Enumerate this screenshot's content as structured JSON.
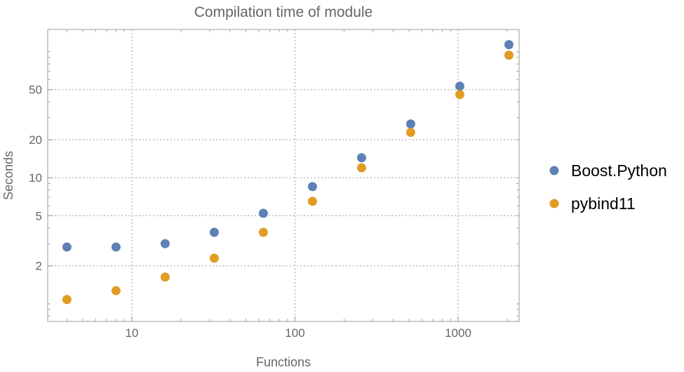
{
  "chart_data": {
    "type": "scatter",
    "title": "Compilation time of module",
    "xlabel": "Functions",
    "ylabel": "Seconds",
    "xscale": "log",
    "yscale": "log",
    "xlim": [
      3.05,
      2366
    ],
    "ylim": [
      0.724,
      150
    ],
    "xticks": [
      10,
      100,
      1000
    ],
    "xtick_labels": [
      "10",
      "100",
      "1000"
    ],
    "yticks": [
      2,
      5,
      10,
      20,
      50
    ],
    "ytick_labels": [
      "2",
      "5",
      "10",
      "20",
      "50"
    ],
    "grid": true,
    "legend_position": "right",
    "x": [
      4,
      8,
      16,
      32,
      64,
      128,
      256,
      512,
      1024,
      2048
    ],
    "series": [
      {
        "name": "Boost.Python",
        "color": "#5e81b5",
        "values": [
          2.82,
          2.82,
          3.0,
          3.69,
          5.22,
          8.5,
          14.4,
          26.7,
          53.3,
          113.7
        ]
      },
      {
        "name": "pybind11",
        "color": "#e19c24",
        "values": [
          1.08,
          1.27,
          1.63,
          2.3,
          3.69,
          6.5,
          12.0,
          22.9,
          45.7,
          93.8
        ]
      }
    ]
  }
}
